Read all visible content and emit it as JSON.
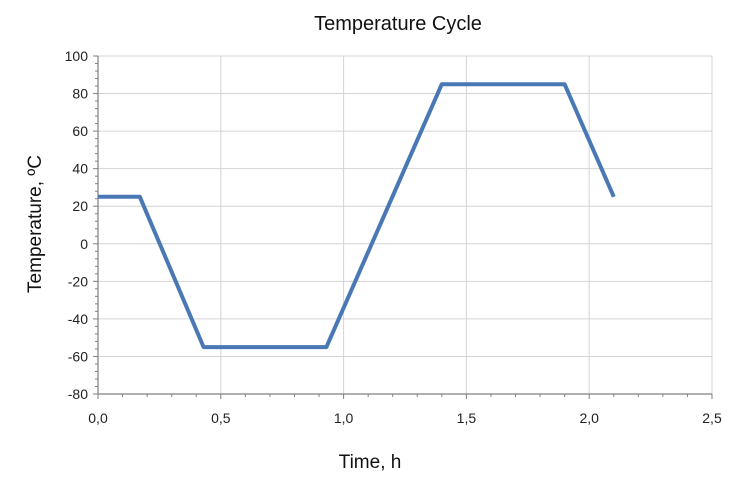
{
  "chart_data": {
    "type": "line",
    "title": "Temperature Cycle",
    "xlabel": "Time, h",
    "ylabel": "Temperature, ºC",
    "xlim": [
      0,
      2.5
    ],
    "ylim": [
      -80,
      100
    ],
    "x_ticks": [
      "0,0",
      "0,5",
      "1,0",
      "1,5",
      "2,0",
      "2,5"
    ],
    "y_ticks": [
      "100",
      "80",
      "60",
      "40",
      "20",
      "0",
      "-20",
      "-40",
      "-60",
      "-80"
    ],
    "grid": "vertical and horizontal major gridlines",
    "series": [
      {
        "color": "#4a78b5",
        "x": [
          0.0,
          0.17,
          0.43,
          0.93,
          1.4,
          1.9,
          2.1
        ],
        "y": [
          25,
          25,
          -55,
          -55,
          85,
          85,
          25
        ]
      }
    ]
  }
}
